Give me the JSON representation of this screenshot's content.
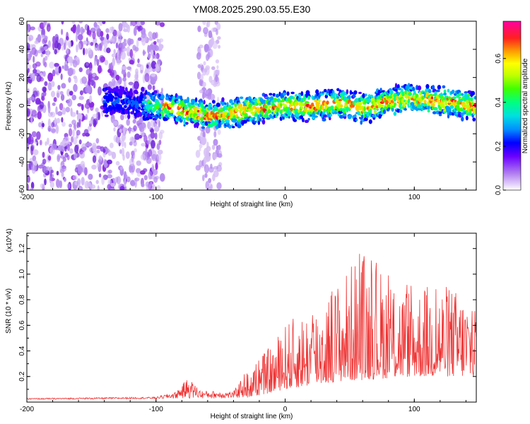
{
  "title": "YM08.2025.290.03.55.E30",
  "chart_data": [
    {
      "type": "heatmap",
      "name": "spectrogram",
      "xlabel": "Height of straight line (km)",
      "ylabel": "Frequency (Hz)",
      "xlim": [
        -200,
        148
      ],
      "ylim": [
        -60,
        60
      ],
      "xticks": [
        -200,
        -100,
        0,
        100
      ],
      "yticks": [
        60,
        40,
        20,
        0,
        -20,
        -40,
        -60
      ],
      "colorbar": {
        "label": "Normalized spectral amplitude",
        "range": [
          0.0,
          0.77
        ],
        "ticks": [
          0.0,
          0.2,
          0.4,
          0.6
        ],
        "tick_labels": [
          "0.0",
          "0.2",
          "0.4",
          "0.6"
        ],
        "colors": [
          "#ffffff",
          "#c8a8f0",
          "#8a2be2",
          "#4b00ff",
          "#0000ff",
          "#0090ff",
          "#00e0e0",
          "#00ff80",
          "#40ff00",
          "#c0ff00",
          "#ffff00",
          "#ffa000",
          "#ff3000",
          "#ff0060",
          "#ff00a0"
        ]
      },
      "ridge_center_hz": [
        {
          "x": -130,
          "y": 3
        },
        {
          "x": -100,
          "y": 0
        },
        {
          "x": -80,
          "y": -3
        },
        {
          "x": -60,
          "y": -7
        },
        {
          "x": -50,
          "y": -6
        },
        {
          "x": -30,
          "y": -4
        },
        {
          "x": 0,
          "y": 0
        },
        {
          "x": 20,
          "y": -1
        },
        {
          "x": 40,
          "y": 2
        },
        {
          "x": 60,
          "y": -2
        },
        {
          "x": 80,
          "y": 3
        },
        {
          "x": 100,
          "y": 5
        },
        {
          "x": 120,
          "y": 3
        },
        {
          "x": 148,
          "y": 0
        }
      ],
      "noise_regions_km": [
        [
          -200,
          -95
        ],
        [
          -68,
          -50
        ]
      ]
    },
    {
      "type": "line",
      "name": "snr",
      "xlabel": "Height of straight line (km)",
      "ylabel": "SNR (10 * v/v)",
      "y_multiplier": "(x10^4)",
      "xlim": [
        -200,
        148
      ],
      "ylim": [
        0,
        1.32
      ],
      "xticks": [
        -200,
        -100,
        0,
        100
      ],
      "yticks": [
        0.2,
        0.4,
        0.6,
        0.8,
        1.0,
        1.2
      ],
      "ytick_labels": [
        "0.2",
        "0.4",
        "0.6",
        "0.8",
        "1.0",
        "1.2"
      ],
      "color": "#ee3333",
      "envelope": [
        {
          "x": -200,
          "y": 0.03
        },
        {
          "x": -100,
          "y": 0.04
        },
        {
          "x": -85,
          "y": 0.08
        },
        {
          "x": -75,
          "y": 0.19
        },
        {
          "x": -65,
          "y": 0.09
        },
        {
          "x": -40,
          "y": 0.08
        },
        {
          "x": -30,
          "y": 0.25
        },
        {
          "x": -10,
          "y": 0.45
        },
        {
          "x": 0,
          "y": 0.62
        },
        {
          "x": 20,
          "y": 0.75
        },
        {
          "x": 40,
          "y": 0.95
        },
        {
          "x": 60,
          "y": 1.2
        },
        {
          "x": 80,
          "y": 1.0
        },
        {
          "x": 100,
          "y": 0.9
        },
        {
          "x": 120,
          "y": 0.95
        },
        {
          "x": 140,
          "y": 0.85
        },
        {
          "x": 148,
          "y": 0.8
        }
      ],
      "baseline": [
        {
          "x": -200,
          "y": 0.02
        },
        {
          "x": -30,
          "y": 0.03
        },
        {
          "x": 0,
          "y": 0.1
        },
        {
          "x": 40,
          "y": 0.16
        },
        {
          "x": 100,
          "y": 0.2
        },
        {
          "x": 148,
          "y": 0.2
        }
      ]
    }
  ]
}
